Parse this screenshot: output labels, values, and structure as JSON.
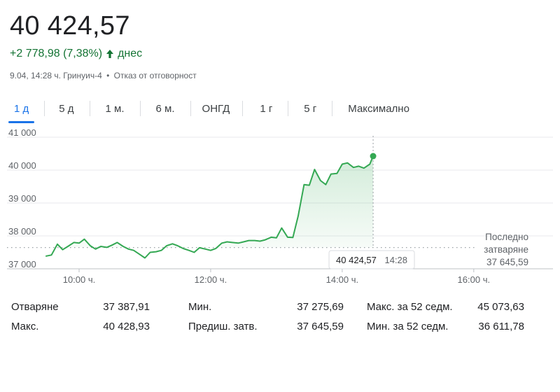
{
  "quote": {
    "price": "40 424,57",
    "change": "+2 778,98 (7,38%)",
    "change_suffix": "днес",
    "timestamp": "9.04, 14:28 ч. Гринуич-4",
    "separator": "•",
    "disclaimer": "Отказ от отговорност",
    "up_color": "#137333"
  },
  "tabs": [
    {
      "label": "1 д",
      "active": true
    },
    {
      "label": "5 д"
    },
    {
      "label": "1 м."
    },
    {
      "label": "6 м."
    },
    {
      "label": "ОНГД"
    },
    {
      "label": "1 г"
    },
    {
      "label": "5 г"
    },
    {
      "label": "Максимално"
    }
  ],
  "chart_data": {
    "type": "area",
    "x_unit": "hours",
    "x_ticks": [
      {
        "value": 10,
        "label": "10:00 ч."
      },
      {
        "value": 12,
        "label": "12:00 ч."
      },
      {
        "value": 14,
        "label": "14:00 ч."
      },
      {
        "value": 16,
        "label": "16:00 ч."
      }
    ],
    "y_ticks": [
      {
        "value": 37000,
        "label": "37 000"
      },
      {
        "value": 38000,
        "label": "38 000"
      },
      {
        "value": 39000,
        "label": "39 000"
      },
      {
        "value": 40000,
        "label": "40 000"
      },
      {
        "value": 41000,
        "label": "41 000"
      }
    ],
    "xlim": [
      9.5,
      16.8
    ],
    "ylim": [
      37000,
      41000
    ],
    "line_color": "#34a853",
    "series": [
      {
        "x": [
          9.5,
          9.58,
          9.67,
          9.75,
          9.83,
          9.92,
          10.0,
          10.08,
          10.17,
          10.25,
          10.33,
          10.42,
          10.5,
          10.58,
          10.67,
          10.75,
          10.83,
          10.92,
          11.0,
          11.08,
          11.17,
          11.25,
          11.33,
          11.42,
          11.5,
          11.58,
          11.67,
          11.75,
          11.83,
          11.92,
          12.0,
          12.08,
          12.17,
          12.25,
          12.33,
          12.42,
          12.5,
          12.58,
          12.67,
          12.75,
          12.83,
          12.92,
          13.0,
          13.08,
          13.17,
          13.25,
          13.33,
          13.42,
          13.5,
          13.58,
          13.67,
          13.75,
          13.83,
          13.92,
          14.0,
          14.08,
          14.17,
          14.25,
          14.33,
          14.42,
          14.47
        ],
        "y": [
          37388,
          37420,
          37750,
          37580,
          37680,
          37800,
          37780,
          37900,
          37700,
          37600,
          37680,
          37650,
          37720,
          37800,
          37680,
          37600,
          37560,
          37440,
          37330,
          37500,
          37520,
          37560,
          37700,
          37760,
          37700,
          37620,
          37560,
          37500,
          37640,
          37600,
          37560,
          37620,
          37780,
          37820,
          37800,
          37780,
          37820,
          37860,
          37860,
          37840,
          37880,
          37960,
          37940,
          38240,
          37960,
          37950,
          38600,
          39560,
          39540,
          40020,
          39680,
          39560,
          39880,
          39900,
          40180,
          40220,
          40080,
          40120,
          40060,
          40180,
          40424.57
        ]
      }
    ],
    "previous_close": 37645.59,
    "previous_close_label_1": "Последно",
    "previous_close_label_2": "затваряне",
    "previous_close_value": "37 645,59",
    "tooltip": {
      "value": "40 424,57",
      "time": "14:28"
    }
  },
  "stats": [
    {
      "label": "Отваряне",
      "value": "37 387,91"
    },
    {
      "label": "Мин.",
      "value": "37 275,69"
    },
    {
      "label": "Макс. за 52 седм.",
      "value": "45 073,63"
    },
    {
      "label": "Макс.",
      "value": "40 428,93"
    },
    {
      "label": "Предиш. затв.",
      "value": "37 645,59"
    },
    {
      "label": "Мин. за 52 седм.",
      "value": "36 611,78"
    }
  ]
}
